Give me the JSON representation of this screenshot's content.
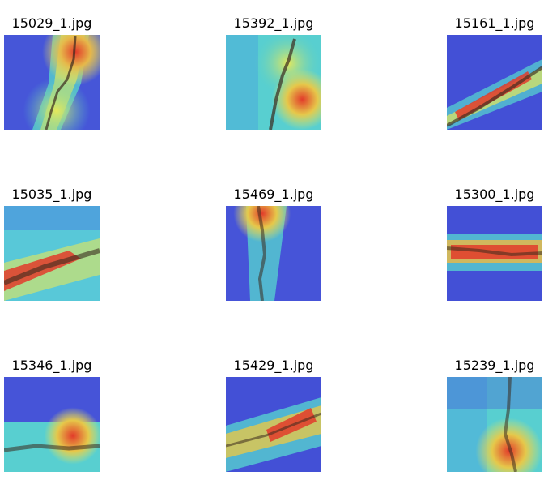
{
  "figure": {
    "panels": [
      {
        "filename": "15029_1.jpg"
      },
      {
        "filename": "15392_1.jpg"
      },
      {
        "filename": "15161_1.jpg"
      },
      {
        "filename": "15035_1.jpg"
      },
      {
        "filename": "15469_1.jpg"
      },
      {
        "filename": "15300_1.jpg"
      },
      {
        "filename": "15346_1.jpg"
      },
      {
        "filename": "15429_1.jpg"
      },
      {
        "filename": "15239_1.jpg"
      }
    ]
  },
  "colors": {
    "low": "#3f45d8",
    "mid_low": "#3fc6d8",
    "mid": "#e6e85a",
    "high": "#e23b2a",
    "crack": "#3b2a1e"
  }
}
